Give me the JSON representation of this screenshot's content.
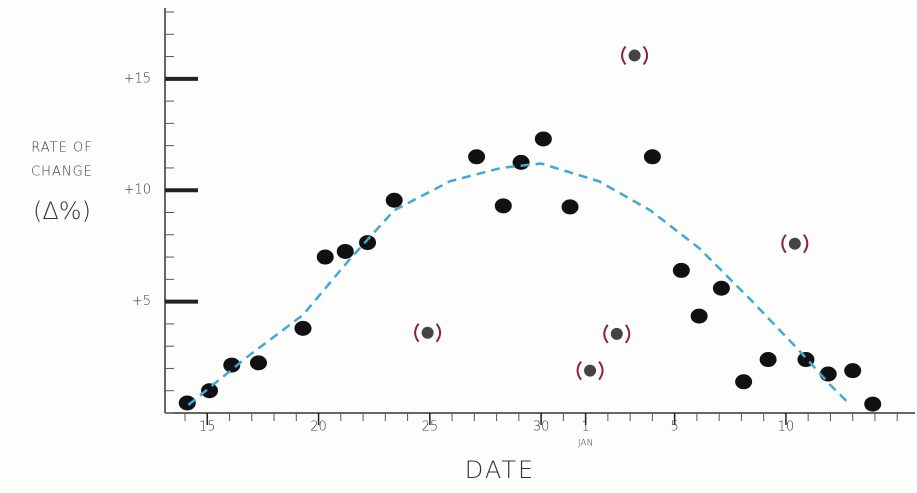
{
  "chart_data": {
    "type": "scatter",
    "xlabel": "DATE",
    "ylabel": [
      "RATE OF",
      "CHANGE",
      "(Δ%)"
    ],
    "xlim": [
      13.1,
      46.8
    ],
    "ylim": [
      0,
      18
    ],
    "xticks": [
      15,
      20,
      25,
      30,
      {
        "value": 32,
        "label": "1"
      },
      {
        "value": 36,
        "label": "5"
      },
      {
        "value": 41,
        "label": "10"
      }
    ],
    "yticks": [
      {
        "value": 5,
        "label": "+5"
      },
      {
        "value": 10,
        "label": "+10"
      },
      {
        "value": 15,
        "label": "+15"
      }
    ],
    "annotations": [
      {
        "text": "JAN",
        "x": 32
      }
    ],
    "series": [
      {
        "color": "#111111",
        "style": "dots",
        "x": [
          14.1,
          15.1,
          16.1,
          17.3,
          19.3,
          20.3,
          21.2,
          22.2,
          23.4,
          27.1,
          28.3,
          29.1,
          30.1,
          31.3,
          35.0,
          36.3,
          37.1,
          38.1,
          39.1,
          40.2,
          41.9,
          42.9,
          44.0,
          44.9
        ],
        "values": [
          0.45,
          1.0,
          2.15,
          2.25,
          3.8,
          7.0,
          7.25,
          7.65,
          9.55,
          11.5,
          9.3,
          11.25,
          12.3,
          9.25,
          11.5,
          6.4,
          4.35,
          5.6,
          1.4,
          2.4,
          2.4,
          1.75,
          1.9,
          0.4
        ]
      },
      {
        "color": "#8b2050",
        "style": "bracketed",
        "x": [
          24.9,
          32.2,
          33.4,
          34.2,
          41.4
        ],
        "values": [
          3.6,
          1.9,
          3.55,
          16.05,
          7.6
        ]
      },
      {
        "color": "#3fa9d8",
        "style": "dashed",
        "x": [
          14.15,
          16.9,
          19.3,
          21.4,
          23.4,
          25.9,
          28.2,
          30.0,
          32.6,
          34.9,
          37.1,
          39.4,
          41.6,
          43.0,
          43.9
        ],
        "values": [
          0.36,
          2.6,
          4.4,
          6.9,
          9.1,
          10.4,
          11.0,
          11.2,
          10.4,
          9.1,
          7.4,
          5.1,
          2.8,
          1.25,
          0.36
        ]
      }
    ]
  }
}
